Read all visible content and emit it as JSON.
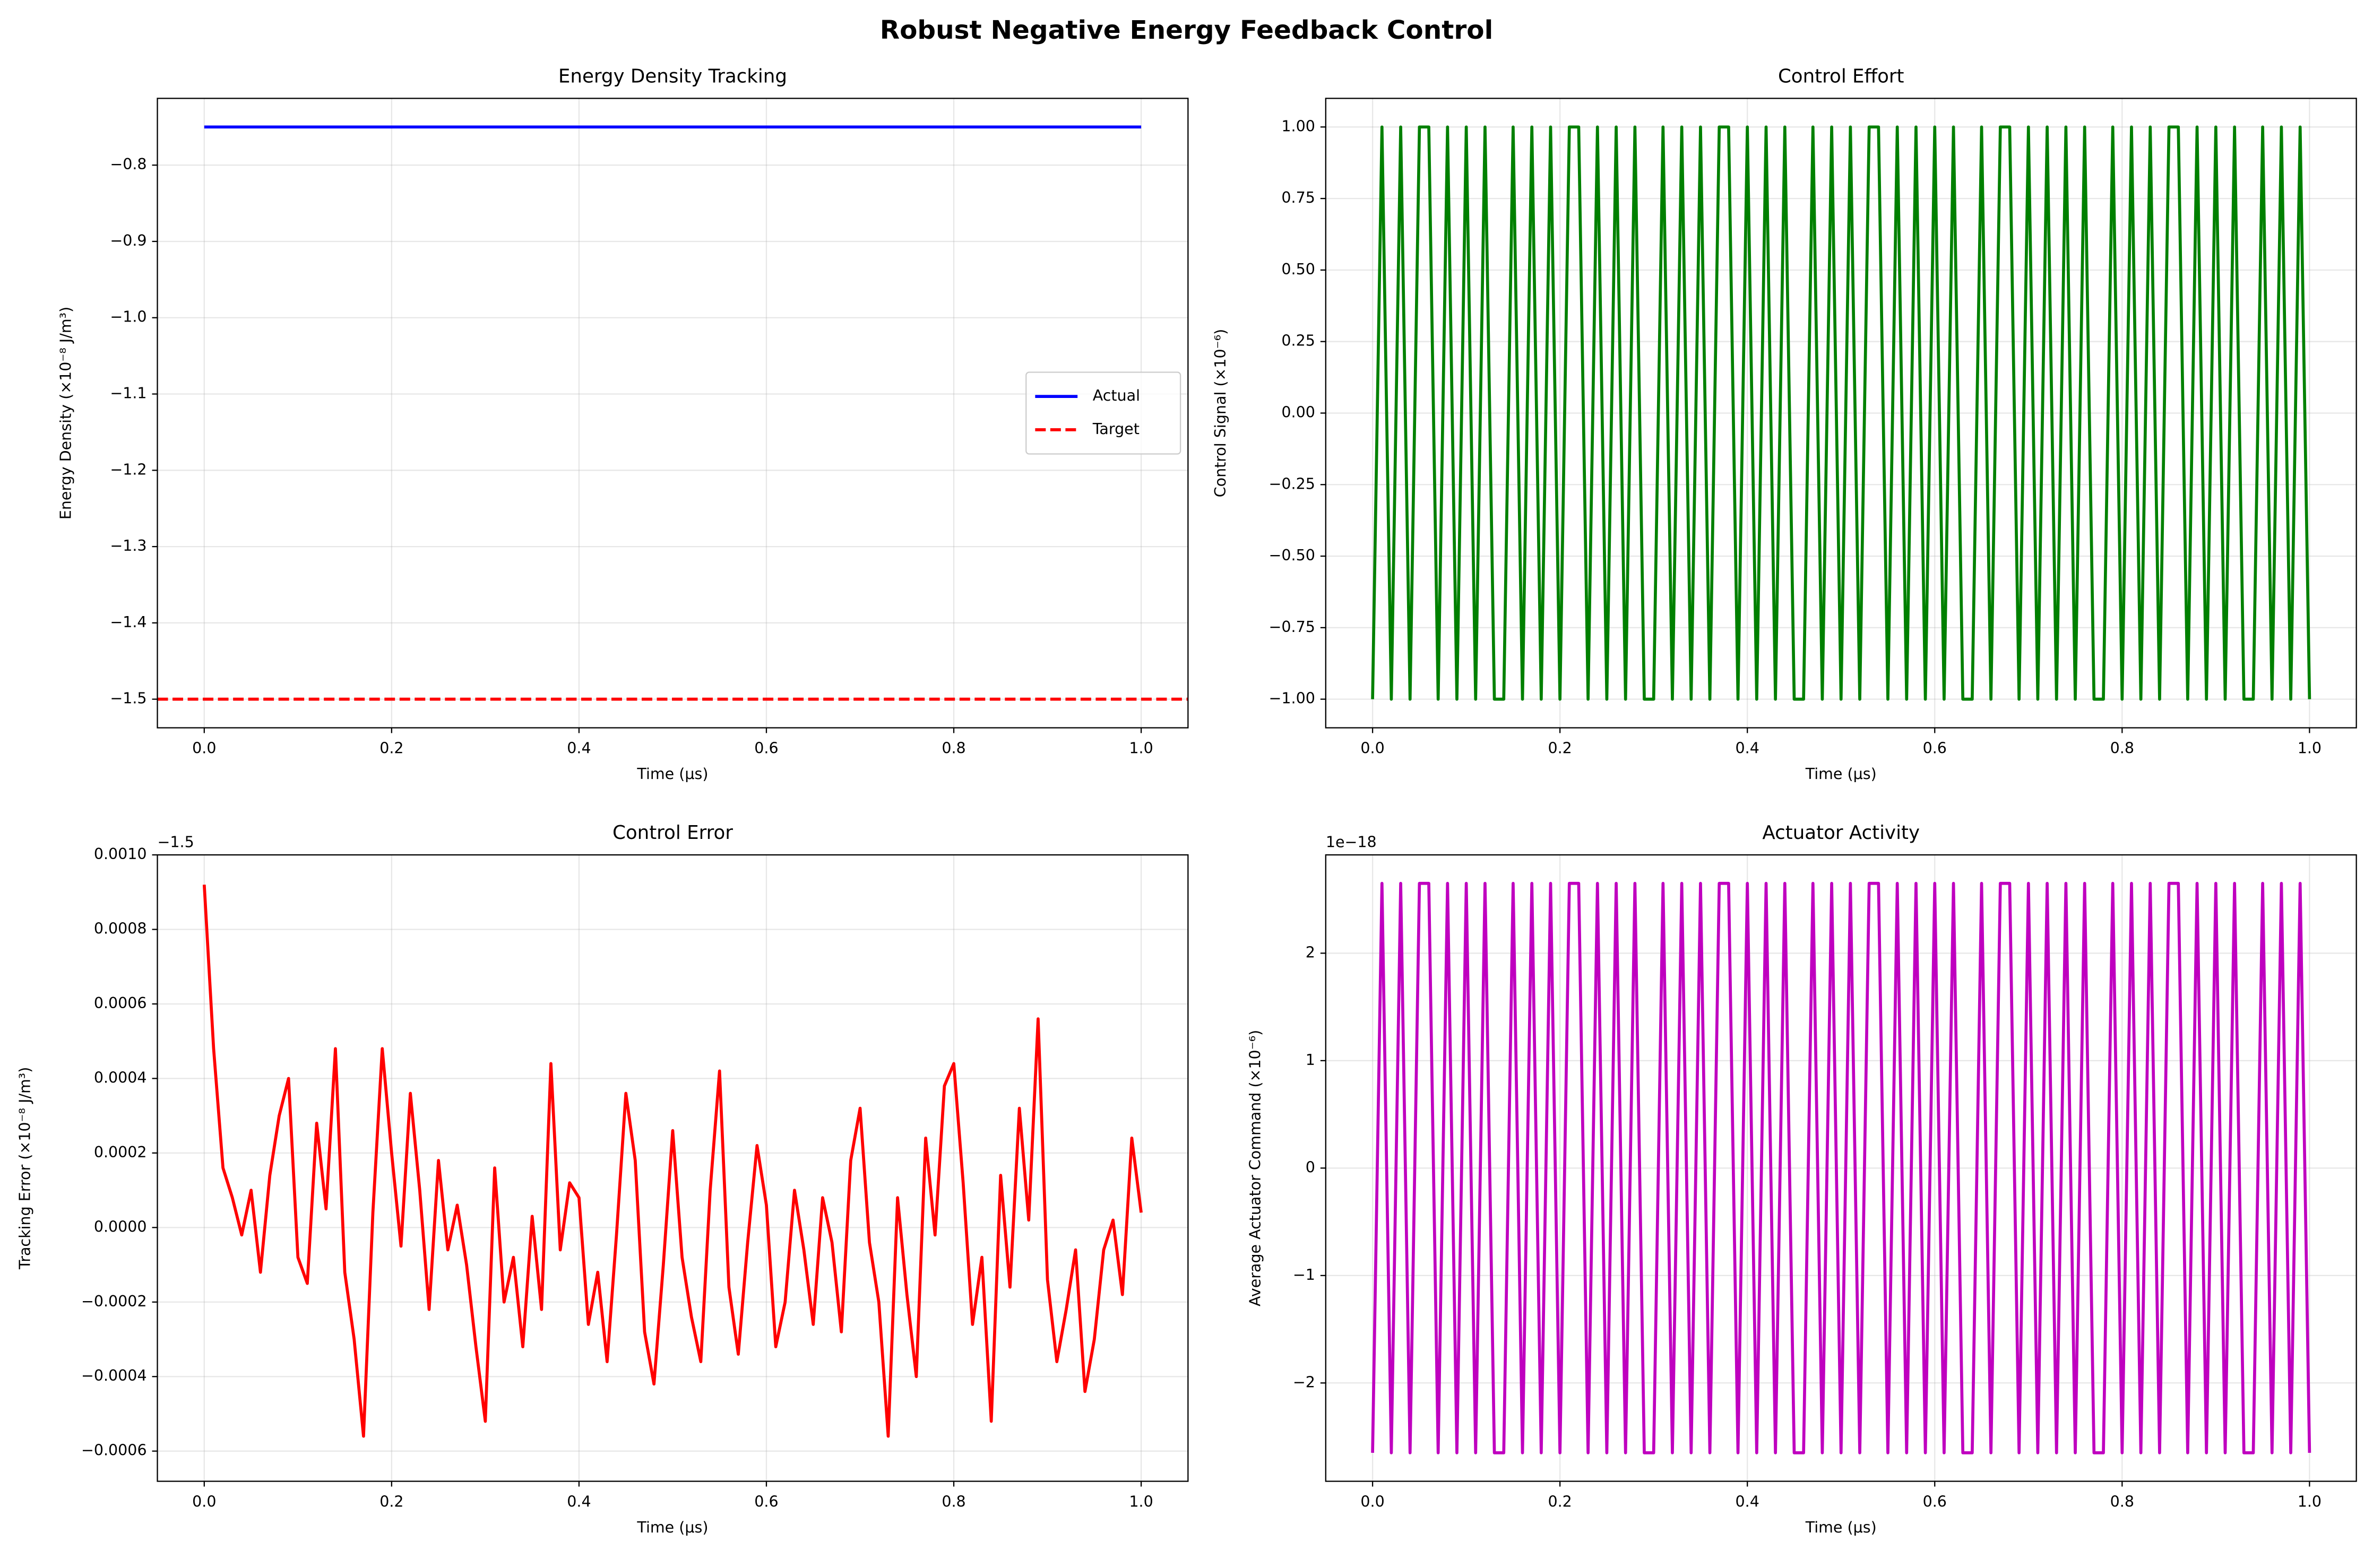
{
  "title": "Robust Negative Energy Feedback Control",
  "chart_data": [
    {
      "type": "line",
      "title": "Energy Density Tracking",
      "xlabel": "Time (μs)",
      "ylabel": "Energy Density (×10⁻⁸ J/m³)",
      "xlim": [
        -0.05,
        1.05
      ],
      "ylim": [
        -1.5375,
        -0.7125
      ],
      "xticks": [
        {
          "value": 0,
          "label": "0.0"
        },
        0.2,
        0.4,
        0.6,
        0.8,
        {
          "value": 1,
          "label": "1.0"
        }
      ],
      "yticks": [
        {
          "value": -0.8,
          "label": "−0.8"
        },
        {
          "value": -0.9,
          "label": "−0.9"
        },
        {
          "value": -1.0,
          "label": "−1.0"
        },
        {
          "value": -1.1,
          "label": "−1.1"
        },
        {
          "value": -1.2,
          "label": "−1.2"
        },
        {
          "value": -1.3,
          "label": "−1.3"
        },
        {
          "value": -1.4,
          "label": "−1.4"
        },
        {
          "value": -1.5,
          "label": "−1.5"
        }
      ],
      "grid": true,
      "legend": "center right",
      "series": [
        {
          "name": "Actual",
          "color": "#0000ff",
          "x": [
            0,
            1
          ],
          "values": [
            -0.75,
            -0.75
          ]
        }
      ],
      "hlines": [
        {
          "name": "Target",
          "color": "#ff0000",
          "value": -1.5,
          "dashed": true
        }
      ]
    },
    {
      "type": "line",
      "title": "Control Effort",
      "xlabel": "Time (μs)",
      "ylabel": "Control Signal (×10⁻⁶)",
      "xlim": [
        -0.05,
        1.05
      ],
      "ylim": [
        -1.1,
        1.1
      ],
      "xticks": [
        {
          "value": 0,
          "label": "0.0"
        },
        0.2,
        0.4,
        0.6,
        0.8,
        {
          "value": 1,
          "label": "1.0"
        }
      ],
      "yticks": [
        {
          "value": 1,
          "label": "1.00"
        },
        {
          "value": 0.75,
          "label": "0.75"
        },
        {
          "value": 0.5,
          "label": "0.50"
        },
        {
          "value": 0.25,
          "label": "0.25"
        },
        {
          "value": 0,
          "label": "0.00"
        },
        {
          "value": -0.25,
          "label": "−0.25"
        },
        {
          "value": -0.5,
          "label": "−0.50"
        },
        {
          "value": -0.75,
          "label": "−0.75"
        },
        {
          "value": -1,
          "label": "−1.00"
        }
      ],
      "grid": true,
      "series": [
        {
          "color": "#008000",
          "x": [
            0,
            0.01,
            0.02,
            0.03,
            0.04,
            0.05,
            0.06,
            0.07,
            0.08,
            0.09,
            0.1,
            0.11,
            0.12,
            0.13,
            0.14,
            0.15,
            0.16,
            0.17,
            0.18,
            0.19,
            0.2,
            0.21,
            0.22,
            0.23,
            0.24,
            0.25,
            0.26,
            0.27,
            0.28,
            0.29,
            0.3,
            0.31,
            0.32,
            0.33,
            0.34,
            0.35,
            0.36,
            0.37,
            0.38,
            0.39,
            0.4,
            0.41,
            0.42,
            0.43,
            0.44,
            0.45,
            0.46,
            0.47,
            0.48,
            0.49,
            0.5,
            0.51,
            0.52,
            0.53,
            0.54,
            0.55,
            0.56,
            0.57,
            0.58,
            0.59,
            0.6,
            0.61,
            0.62,
            0.63,
            0.64,
            0.65,
            0.66,
            0.67,
            0.68,
            0.69,
            0.7,
            0.71,
            0.72,
            0.73,
            0.74,
            0.75,
            0.76,
            0.77,
            0.78,
            0.79,
            0.8,
            0.81,
            0.82,
            0.83,
            0.84,
            0.85,
            0.86,
            0.87,
            0.88,
            0.89,
            0.9,
            0.91,
            0.92,
            0.93,
            0.94,
            0.95,
            0.96,
            0.97,
            0.98,
            0.99,
            1
          ],
          "values": [
            -1,
            1,
            -1,
            1,
            -1,
            1,
            1,
            -1,
            1,
            -1,
            1,
            -1,
            1,
            -1,
            -1,
            1,
            -1,
            1,
            -1,
            1,
            -1,
            1,
            1,
            -1,
            1,
            -1,
            1,
            -1,
            1,
            -1,
            -1,
            1,
            -1,
            1,
            -1,
            1,
            -1,
            1,
            1,
            -1,
            1,
            -1,
            1,
            -1,
            1,
            -1,
            -1,
            1,
            -1,
            1,
            -1,
            1,
            -1,
            1,
            1,
            -1,
            1,
            -1,
            1,
            -1,
            1,
            -1,
            1,
            -1,
            -1,
            1,
            -1,
            1,
            1,
            -1,
            1,
            -1,
            1,
            -1,
            1,
            -1,
            1,
            -1,
            -1,
            1,
            -1,
            1,
            -1,
            1,
            -1,
            1,
            1,
            -1,
            1,
            -1,
            1,
            -1,
            1,
            -1,
            -1,
            1,
            -1,
            1,
            -1,
            1,
            -1
          ]
        }
      ]
    },
    {
      "type": "line",
      "title": "Control Error",
      "xlabel": "Time (μs)",
      "ylabel": "Tracking Error (×10⁻⁸ J/m³)",
      "offset_text": "−1.5",
      "xlim": [
        -0.05,
        1.05
      ],
      "ylim": [
        -0.000681,
        0.001
      ],
      "xticks": [
        {
          "value": 0,
          "label": "0.0"
        },
        0.2,
        0.4,
        0.6,
        0.8,
        {
          "value": 1,
          "label": "1.0"
        }
      ],
      "yticks": [
        {
          "value": 0.001,
          "label": "0.0010"
        },
        {
          "value": 0.0008,
          "label": "0.0008"
        },
        {
          "value": 0.0006,
          "label": "0.0006"
        },
        {
          "value": 0.0004,
          "label": "0.0004"
        },
        {
          "value": 0.0002,
          "label": "0.0002"
        },
        {
          "value": 0,
          "label": "0.0000"
        },
        {
          "value": -0.0002,
          "label": "−0.0002"
        },
        {
          "value": -0.0004,
          "label": "−0.0004"
        },
        {
          "value": -0.0006,
          "label": "−0.0006"
        }
      ],
      "grid": true,
      "series": [
        {
          "color": "#ff0000",
          "x": [
            0,
            0.01,
            0.02,
            0.03,
            0.04,
            0.05,
            0.06,
            0.07,
            0.08,
            0.09,
            0.1,
            0.11,
            0.12,
            0.13,
            0.14,
            0.15,
            0.16,
            0.17,
            0.18,
            0.19,
            0.2,
            0.21,
            0.22,
            0.23,
            0.24,
            0.25,
            0.26,
            0.27,
            0.28,
            0.29,
            0.3,
            0.31,
            0.32,
            0.33,
            0.34,
            0.35,
            0.36,
            0.37,
            0.38,
            0.39,
            0.4,
            0.41,
            0.42,
            0.43,
            0.44,
            0.45,
            0.46,
            0.47,
            0.48,
            0.49,
            0.5,
            0.51,
            0.52,
            0.53,
            0.54,
            0.55,
            0.56,
            0.57,
            0.58,
            0.59,
            0.6,
            0.61,
            0.62,
            0.63,
            0.64,
            0.65,
            0.66,
            0.67,
            0.68,
            0.69,
            0.7,
            0.71,
            0.72,
            0.73,
            0.74,
            0.75,
            0.76,
            0.77,
            0.78,
            0.79,
            0.8,
            0.81,
            0.82,
            0.83,
            0.84,
            0.85,
            0.86,
            0.87,
            0.88,
            0.89,
            0.9,
            0.91,
            0.92,
            0.93,
            0.94,
            0.95,
            0.96,
            0.97,
            0.98,
            0.99,
            1
          ],
          "values": [
            0.00092,
            0.00048,
            0.00016,
            8e-05,
            -2e-05,
            0.0001,
            -0.00012,
            0.00014,
            0.0003,
            0.0004,
            -8e-05,
            -0.00015,
            0.00028,
            5e-05,
            0.00048,
            -0.00012,
            -0.0003,
            -0.00056,
            4e-05,
            0.00048,
            0.0002,
            -5e-05,
            0.00036,
            0.0001,
            -0.00022,
            0.00018,
            -6e-05,
            6e-05,
            -0.0001,
            -0.00032,
            -0.00052,
            0.00016,
            -0.0002,
            -8e-05,
            -0.00032,
            3e-05,
            -0.00022,
            0.00044,
            -6e-05,
            0.00012,
            8e-05,
            -0.00026,
            -0.00012,
            -0.00036,
            -2e-05,
            0.00036,
            0.00018,
            -0.00028,
            -0.00042,
            -0.0001,
            0.00026,
            -8e-05,
            -0.00024,
            -0.00036,
            0.0001,
            0.00042,
            -0.00016,
            -0.00034,
            -4e-05,
            0.00022,
            6e-05,
            -0.00032,
            -0.0002,
            0.0001,
            -6e-05,
            -0.00026,
            8e-05,
            -4e-05,
            -0.00028,
            0.00018,
            0.00032,
            -4e-05,
            -0.0002,
            -0.00056,
            8e-05,
            -0.00018,
            -0.0004,
            0.00024,
            -2e-05,
            0.00038,
            0.00044,
            0.00012,
            -0.00026,
            -8e-05,
            -0.00052,
            0.00014,
            -0.00016,
            0.00032,
            2e-05,
            0.00056,
            -0.00014,
            -0.00036,
            -0.00022,
            -6e-05,
            -0.00044,
            -0.0003,
            -6e-05,
            2e-05,
            -0.00018,
            0.00024,
            4e-05
          ]
        }
      ]
    },
    {
      "type": "line",
      "title": "Actuator Activity",
      "xlabel": "Time (μs)",
      "ylabel": "Average Actuator Command (×10⁻⁶)",
      "offset_text": "1e−18",
      "xlim": [
        -0.05,
        1.05
      ],
      "ylim": [
        -2.915,
        2.915
      ],
      "xticks": [
        {
          "value": 0,
          "label": "0.0"
        },
        0.2,
        0.4,
        0.6,
        0.8,
        {
          "value": 1,
          "label": "1.0"
        }
      ],
      "yticks": [
        2,
        1,
        0,
        {
          "value": -1,
          "label": "−1"
        },
        {
          "value": -2,
          "label": "−2"
        }
      ],
      "grid": true,
      "series": [
        {
          "color": "#bf00bf",
          "x": [
            0,
            0.01,
            0.02,
            0.03,
            0.04,
            0.05,
            0.06,
            0.07,
            0.08,
            0.09,
            0.1,
            0.11,
            0.12,
            0.13,
            0.14,
            0.15,
            0.16,
            0.17,
            0.18,
            0.19,
            0.2,
            0.21,
            0.22,
            0.23,
            0.24,
            0.25,
            0.26,
            0.27,
            0.28,
            0.29,
            0.3,
            0.31,
            0.32,
            0.33,
            0.34,
            0.35,
            0.36,
            0.37,
            0.38,
            0.39,
            0.4,
            0.41,
            0.42,
            0.43,
            0.44,
            0.45,
            0.46,
            0.47,
            0.48,
            0.49,
            0.5,
            0.51,
            0.52,
            0.53,
            0.54,
            0.55,
            0.56,
            0.57,
            0.58,
            0.59,
            0.6,
            0.61,
            0.62,
            0.63,
            0.64,
            0.65,
            0.66,
            0.67,
            0.68,
            0.69,
            0.7,
            0.71,
            0.72,
            0.73,
            0.74,
            0.75,
            0.76,
            0.77,
            0.78,
            0.79,
            0.8,
            0.81,
            0.82,
            0.83,
            0.84,
            0.85,
            0.86,
            0.87,
            0.88,
            0.89,
            0.9,
            0.91,
            0.92,
            0.93,
            0.94,
            0.95,
            0.96,
            0.97,
            0.98,
            0.99,
            1
          ],
          "values": [
            -2.65,
            2.65,
            -2.65,
            2.65,
            -2.65,
            2.65,
            2.65,
            -2.65,
            2.65,
            -2.65,
            2.65,
            -2.65,
            2.65,
            -2.65,
            -2.65,
            2.65,
            -2.65,
            2.65,
            -2.65,
            2.65,
            -2.65,
            2.65,
            2.65,
            -2.65,
            2.65,
            -2.65,
            2.65,
            -2.65,
            2.65,
            -2.65,
            -2.65,
            2.65,
            -2.65,
            2.65,
            -2.65,
            2.65,
            -2.65,
            2.65,
            2.65,
            -2.65,
            2.65,
            -2.65,
            2.65,
            -2.65,
            2.65,
            -2.65,
            -2.65,
            2.65,
            -2.65,
            2.65,
            -2.65,
            2.65,
            -2.65,
            2.65,
            2.65,
            -2.65,
            2.65,
            -2.65,
            2.65,
            -2.65,
            2.65,
            -2.65,
            2.65,
            -2.65,
            -2.65,
            2.65,
            -2.65,
            2.65,
            2.65,
            -2.65,
            2.65,
            -2.65,
            2.65,
            -2.65,
            2.65,
            -2.65,
            2.65,
            -2.65,
            -2.65,
            2.65,
            -2.65,
            2.65,
            -2.65,
            2.65,
            -2.65,
            2.65,
            2.65,
            -2.65,
            2.65,
            -2.65,
            2.65,
            -2.65,
            2.65,
            -2.65,
            -2.65,
            2.65,
            -2.65,
            2.65,
            -2.65,
            2.65,
            -2.65
          ]
        }
      ]
    }
  ]
}
